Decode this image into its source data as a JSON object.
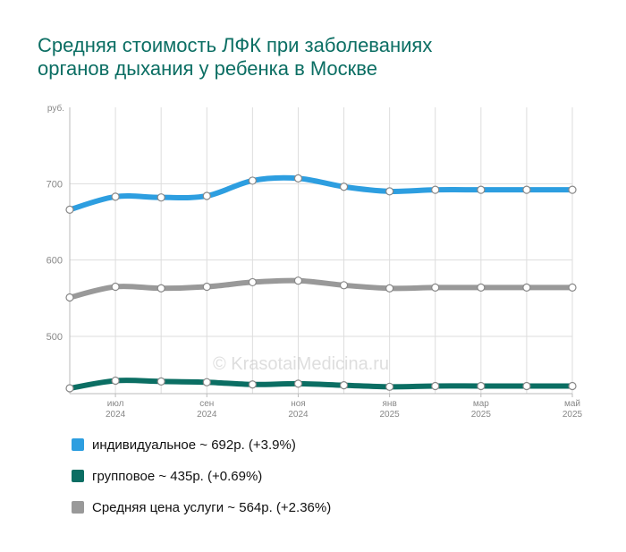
{
  "title_lines": [
    "Средняя стоимость ЛФК при заболеваниях",
    "органов дыхания у ребенка в Москве"
  ],
  "watermark": "© KrasotaiMedicina.ru",
  "chart_data": {
    "type": "line",
    "title": "Средняя стоимость ЛФК при заболеваниях органов дыхания у ребенка в Москве",
    "ylabel": "руб.",
    "ylim": [
      425,
      800
    ],
    "yticks": [
      500,
      600,
      700
    ],
    "grid": true,
    "x": [
      "2024-06",
      "2024-07",
      "2024-08",
      "2024-09",
      "2024-10",
      "2024-11",
      "2024-12",
      "2025-01",
      "2025-02",
      "2025-03",
      "2025-04",
      "2025-05"
    ],
    "xticks": [
      {
        "month": "июл",
        "year": "2024"
      },
      {
        "month": "сен",
        "year": "2024"
      },
      {
        "month": "ноя",
        "year": "2024"
      },
      {
        "month": "янв",
        "year": "2025"
      },
      {
        "month": "мар",
        "year": "2025"
      },
      {
        "month": "май",
        "year": "2025"
      }
    ],
    "series": [
      {
        "key": "individual",
        "color": "#2d9ee0",
        "values": [
          666,
          683,
          682,
          684,
          704,
          707,
          696,
          690,
          692,
          692,
          692,
          692
        ]
      },
      {
        "key": "average",
        "color": "#999999",
        "values": [
          551,
          565,
          563,
          565,
          571,
          573,
          567,
          563,
          564,
          564,
          564,
          564
        ]
      },
      {
        "key": "group",
        "color": "#0b6e63",
        "values": [
          432,
          442,
          441,
          440,
          437,
          438,
          436,
          434,
          435,
          435,
          435,
          435
        ]
      }
    ],
    "legend_position": "bottom"
  },
  "legend": [
    {
      "label": "индивидуальное ~ 692р. (+3.9%)",
      "color": "#2d9ee0"
    },
    {
      "label": "групповое ~ 435р. (+0.69%)",
      "color": "#0b6e63"
    },
    {
      "label": "Средняя цена услуги ~ 564р. (+2.36%)",
      "color": "#999999"
    }
  ]
}
